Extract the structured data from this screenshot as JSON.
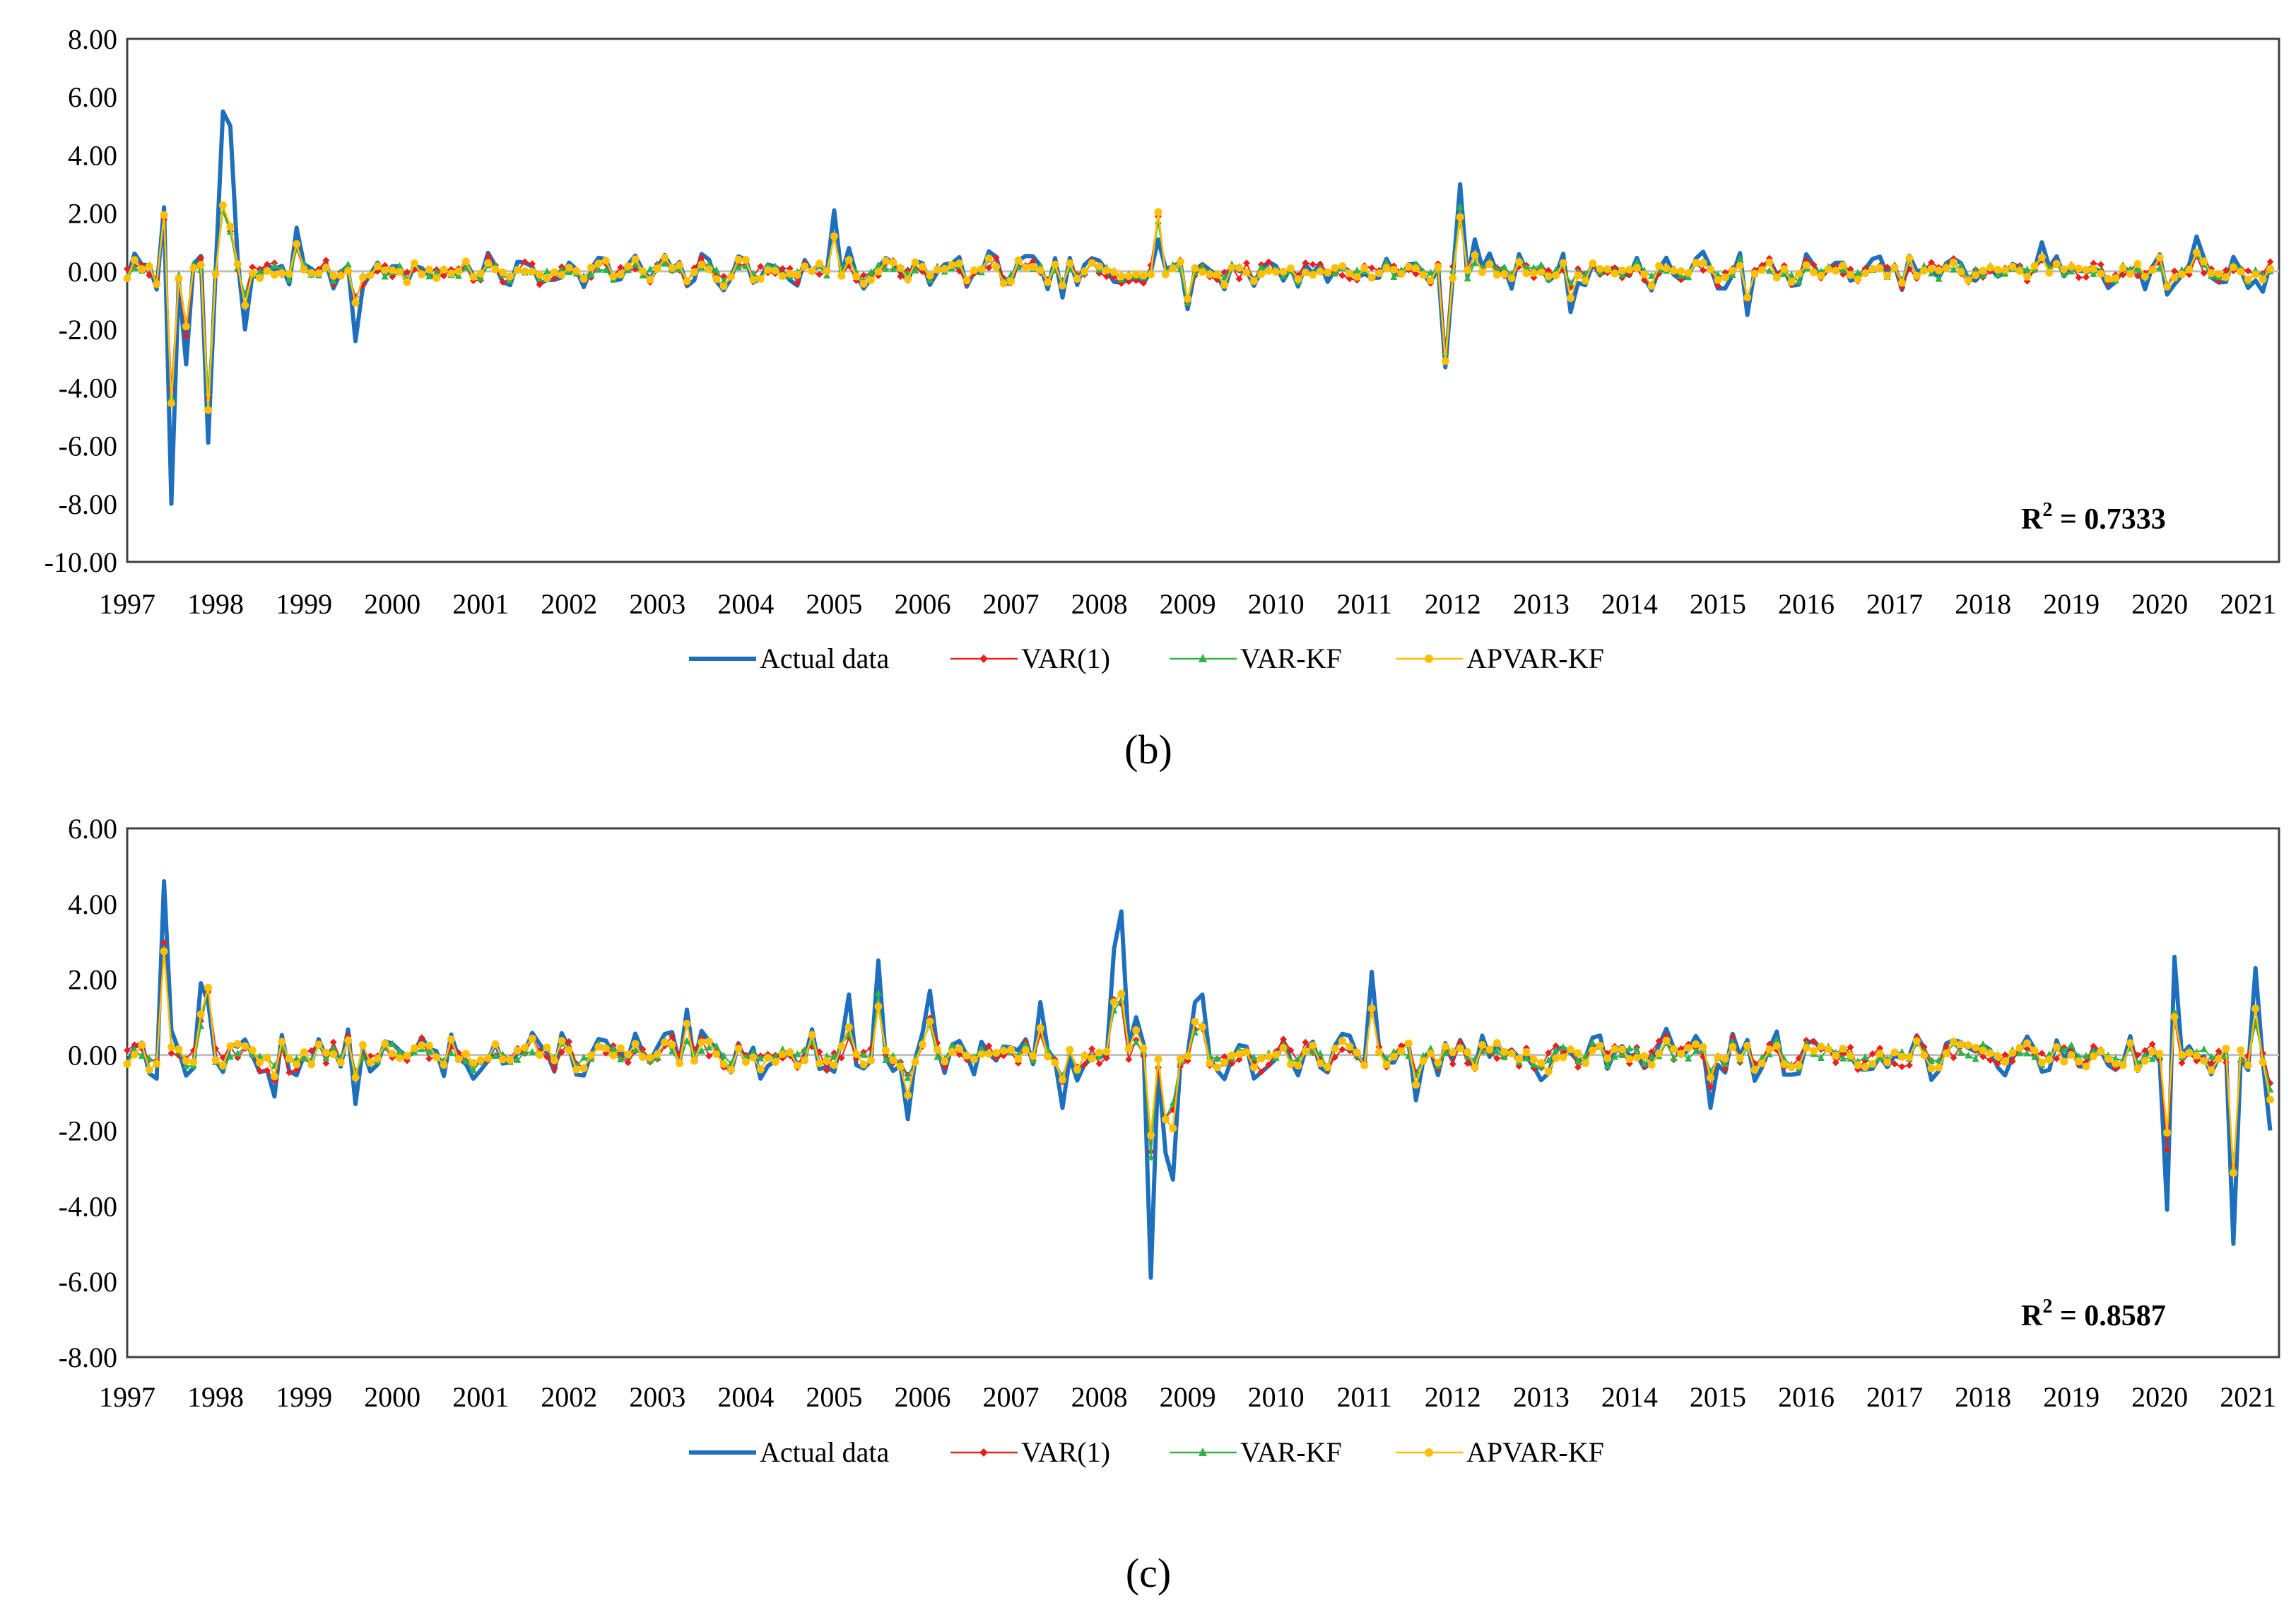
{
  "chart_data": [
    {
      "type": "line",
      "panel_label": "(b)",
      "x": [
        "1997",
        "1998",
        "1999",
        "2000",
        "2001",
        "2002",
        "2003",
        "2004",
        "2005",
        "2006",
        "2007",
        "2008",
        "2009",
        "2010",
        "2011",
        "2012",
        "2013",
        "2014",
        "2015",
        "2016",
        "2017",
        "2018",
        "2019",
        "2020",
        "2021"
      ],
      "ylim": [
        -10,
        8
      ],
      "yticks": [
        "8.00",
        "6.00",
        "4.00",
        "2.00",
        "0.00",
        "-2.00",
        "-4.00",
        "-6.00",
        "-8.00",
        "-10.00"
      ],
      "annotation": {
        "prefix": "R",
        "sup": "2",
        "text": " = 0.7333"
      },
      "legend": [
        "Actual data",
        "VAR(1)",
        "VAR-KF",
        "APVAR-KF"
      ],
      "series_colors": [
        "#1f6fbf",
        "#e8201f",
        "#2fb34a",
        "#ffc000"
      ],
      "spikes": [
        [
          1997.4,
          2.2
        ],
        [
          1997.5,
          -8
        ],
        [
          1997.7,
          -3.2
        ],
        [
          1997.95,
          -5.9
        ],
        [
          1998.05,
          5.5
        ],
        [
          1998.15,
          5
        ],
        [
          1998.35,
          -2
        ],
        [
          1998.9,
          1.5
        ],
        [
          1999.6,
          -2.4
        ],
        [
          2005.0,
          2.1
        ],
        [
          2005.15,
          0.8
        ],
        [
          2007.6,
          -0.9
        ],
        [
          2008.7,
          1.1
        ],
        [
          2009.0,
          -1.3
        ],
        [
          2011.95,
          -3.3
        ],
        [
          2012.1,
          3.0
        ],
        [
          2012.25,
          1.1
        ],
        [
          2013.35,
          -1.4
        ],
        [
          2015.3,
          -1.5
        ],
        [
          2018.65,
          1.0
        ],
        [
          2020.1,
          -0.8
        ],
        [
          2020.4,
          1.2
        ],
        [
          2021.2,
          -0.7
        ]
      ],
      "model_spikes": [
        [
          1997.4,
          1.8
        ],
        [
          1997.5,
          -4.1
        ],
        [
          1997.7,
          -2.0
        ],
        [
          1997.95,
          -4.3
        ],
        [
          1998.05,
          2.3
        ],
        [
          1998.15,
          1.5
        ],
        [
          1999.6,
          -1.0
        ],
        [
          2005.0,
          1.3
        ],
        [
          2008.7,
          1.8
        ],
        [
          2009.0,
          -1.0
        ],
        [
          2011.95,
          -2.8
        ],
        [
          2012.1,
          2.0
        ],
        [
          2015.3,
          -1.0
        ],
        [
          2020.4,
          0.6
        ]
      ],
      "seed": 7
    },
    {
      "type": "line",
      "panel_label": "(c)",
      "x": [
        "1997",
        "1998",
        "1999",
        "2000",
        "2001",
        "2002",
        "2003",
        "2004",
        "2005",
        "2006",
        "2007",
        "2008",
        "2009",
        "2010",
        "2011",
        "2012",
        "2013",
        "2014",
        "2015",
        "2016",
        "2017",
        "2018",
        "2019",
        "2020",
        "2021"
      ],
      "ylim": [
        -8,
        6
      ],
      "yticks": [
        "6.00",
        "4.00",
        "2.00",
        "0.00",
        "-2.00",
        "-4.00",
        "-6.00",
        "-8.00"
      ],
      "annotation": {
        "prefix": "R",
        "sup": "2",
        "text": " = 0.8587"
      },
      "legend": [
        "Actual data",
        "VAR(1)",
        "VAR-KF",
        "APVAR-KF"
      ],
      "series_colors": [
        "#1f6fbf",
        "#e8201f",
        "#2fb34a",
        "#ffc000"
      ],
      "spikes": [
        [
          1997.45,
          4.6
        ],
        [
          1997.85,
          1.9
        ],
        [
          1997.95,
          1.4
        ],
        [
          1998.65,
          -1.1
        ],
        [
          1999.6,
          -1.3
        ],
        [
          2003.3,
          1.2
        ],
        [
          2005.15,
          1.6
        ],
        [
          2005.5,
          2.5
        ],
        [
          2005.85,
          -1.7
        ],
        [
          2006.05,
          1.7
        ],
        [
          2007.3,
          1.4
        ],
        [
          2007.6,
          -1.4
        ],
        [
          2008.15,
          2.8
        ],
        [
          2008.25,
          3.8
        ],
        [
          2008.4,
          1.0
        ],
        [
          2008.55,
          -5.9
        ],
        [
          2008.75,
          -2.6
        ],
        [
          2008.85,
          -3.3
        ],
        [
          2009.1,
          1.4
        ],
        [
          2009.2,
          1.6
        ],
        [
          2011.1,
          2.2
        ],
        [
          2011.6,
          -1.2
        ],
        [
          2014.95,
          -1.4
        ],
        [
          2020.05,
          -4.1
        ],
        [
          2020.2,
          2.6
        ],
        [
          2020.85,
          -5.0
        ],
        [
          2021.1,
          2.3
        ],
        [
          2021.25,
          -2.0
        ]
      ],
      "model_spikes": [
        [
          1997.45,
          2.9
        ],
        [
          1997.95,
          1.9
        ],
        [
          2005.5,
          1.5
        ],
        [
          2008.25,
          1.5
        ],
        [
          2008.55,
          -2.5
        ],
        [
          2008.75,
          -1.9
        ],
        [
          2011.1,
          1.2
        ],
        [
          2020.05,
          -2.4
        ],
        [
          2020.2,
          1.0
        ],
        [
          2020.85,
          -2.8
        ]
      ],
      "seed": 13
    }
  ]
}
